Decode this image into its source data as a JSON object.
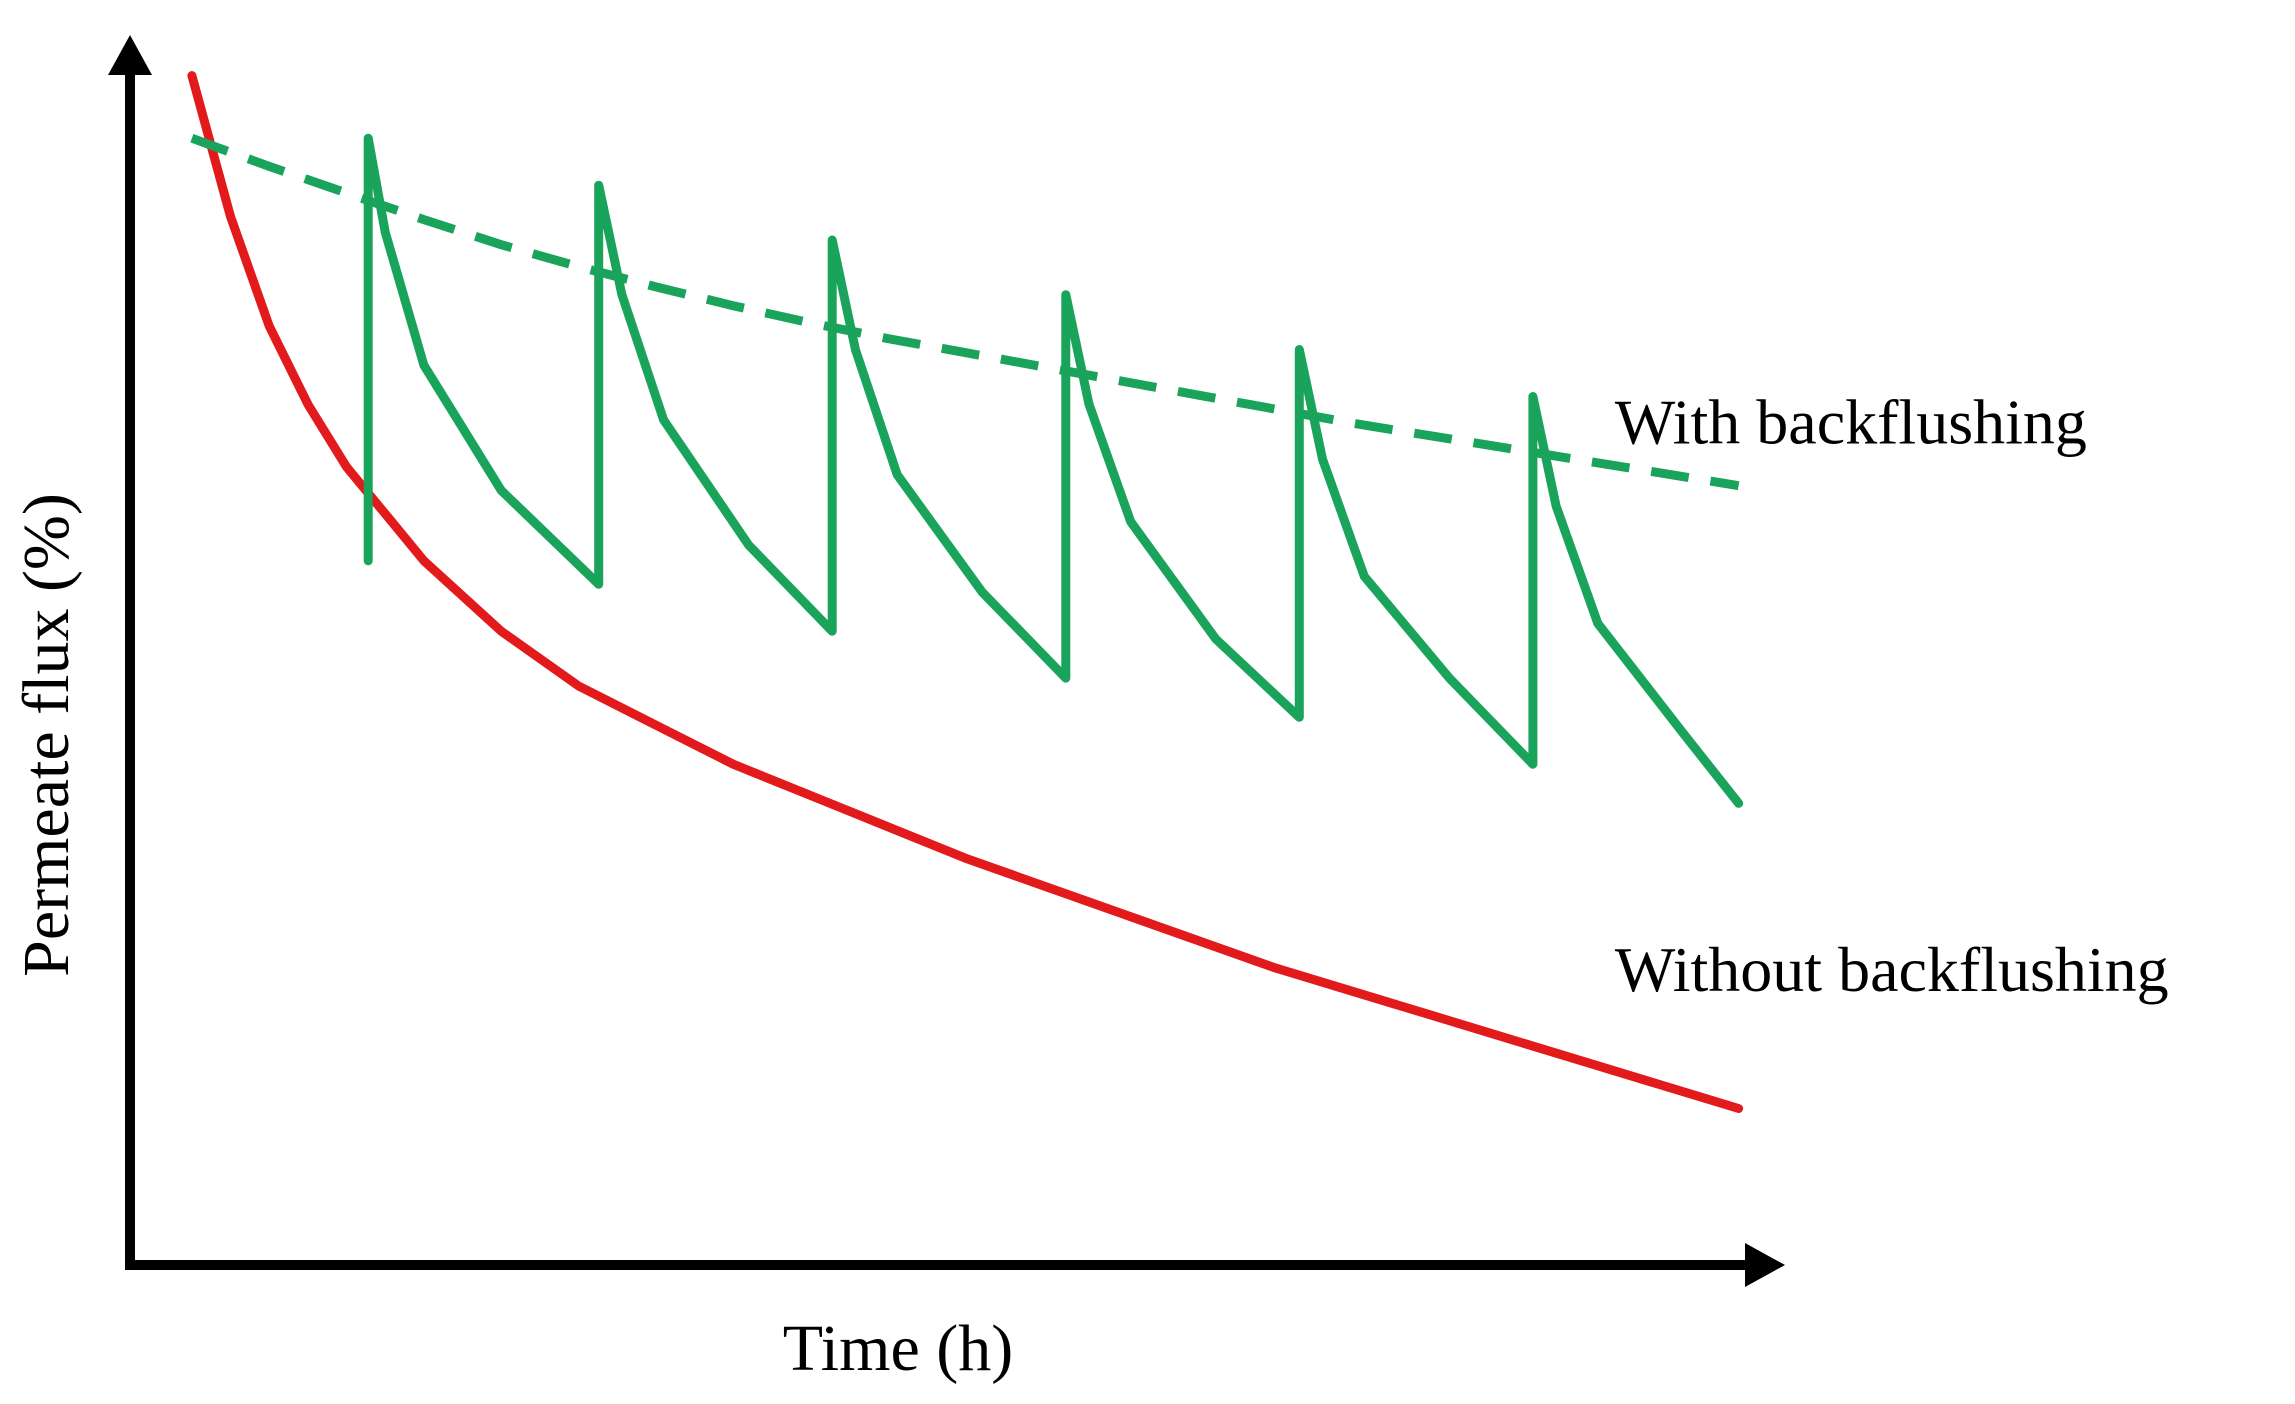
{
  "chart_data": {
    "type": "line",
    "title": "",
    "xlabel": "Time (h)",
    "ylabel": "Permeate flux (%)",
    "grid": false,
    "legend": "none",
    "colors": {
      "axis": "#000000",
      "without": "#e31a1c",
      "with": "#1aa35a"
    },
    "series": [
      {
        "name": "Without backflushing",
        "line_style": "solid",
        "color": "#e31a1c",
        "x": [
          0.0,
          0.25,
          0.5,
          0.75,
          1.0,
          1.25,
          1.5,
          2.0,
          2.5,
          3.0,
          3.5,
          4.0,
          5.0,
          6.0,
          7.0,
          8.0,
          9.0,
          10.0
        ],
        "y": [
          99.0,
          90.0,
          83.0,
          78.0,
          74.0,
          71.0,
          68.0,
          63.5,
          60.0,
          57.5,
          55.0,
          53.0,
          49.0,
          45.5,
          42.0,
          39.0,
          36.0,
          33.0
        ]
      },
      {
        "name": "With backflushing",
        "line_style": "solid",
        "color": "#1aa35a",
        "x": [
          1.14,
          1.14,
          1.25,
          1.5,
          2.0,
          2.63,
          2.63,
          2.78,
          3.05,
          3.6,
          4.14,
          4.14,
          4.29,
          4.56,
          5.11,
          5.65,
          5.65,
          5.8,
          6.07,
          6.62,
          7.16,
          7.16,
          7.31,
          7.58,
          8.13,
          8.67,
          8.67,
          8.82,
          9.09,
          9.64,
          10.0
        ],
        "y": [
          68.0,
          95.0,
          89.0,
          80.5,
          72.5,
          66.5,
          92.0,
          85.0,
          77.0,
          69.0,
          63.5,
          88.5,
          81.5,
          73.5,
          66.0,
          60.5,
          85.0,
          78.0,
          70.5,
          63.0,
          58.0,
          81.5,
          74.5,
          67.0,
          60.5,
          55.0,
          78.5,
          71.5,
          64.0,
          57.0,
          52.5
        ]
      },
      {
        "name": "With backflushing",
        "line_style": "dashed",
        "color": "#1aa35a",
        "x": [
          0.0,
          0.5,
          1.0,
          1.5,
          2.0,
          2.5,
          3.0,
          3.5,
          4.0,
          4.5,
          5.0,
          5.5,
          6.0,
          6.5,
          7.0,
          7.5,
          8.0,
          8.5,
          9.0,
          9.5,
          10.0
        ],
        "y": [
          95.0,
          93.2,
          91.5,
          89.8,
          88.2,
          86.8,
          85.5,
          84.3,
          83.2,
          82.2,
          81.3,
          80.4,
          79.5,
          78.6,
          77.7,
          76.8,
          76.0,
          75.2,
          74.4,
          73.6,
          72.8
        ]
      }
    ],
    "xlim": [
      -0.4,
      10.3
    ],
    "ylim": [
      23.0,
      100.0
    ],
    "annotations": [
      {
        "text": "With backflushing",
        "x": 9.2,
        "y": 75.5
      },
      {
        "text": "Without backflushing",
        "x": 9.2,
        "y": 40.5
      }
    ]
  }
}
